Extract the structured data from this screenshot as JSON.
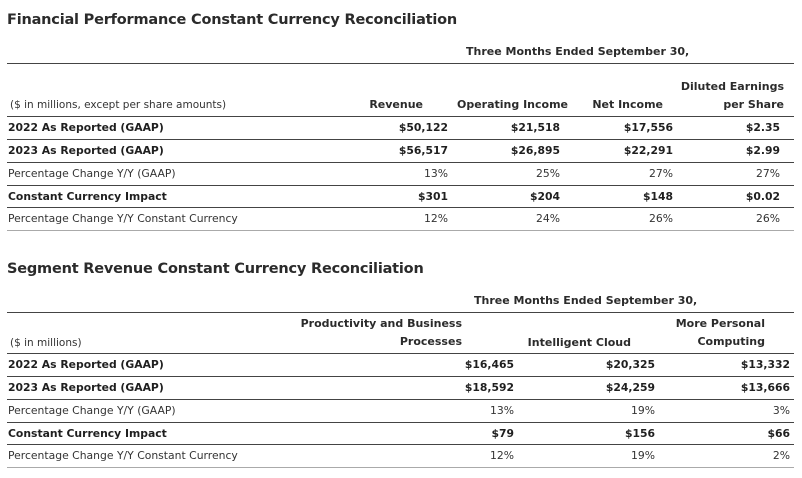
{
  "financial": {
    "title": "Financial Performance Constant Currency Reconciliation",
    "period": "Three Months Ended September 30,",
    "unit_note": "($ in millions, except per share amounts)",
    "headers": {
      "revenue": "Revenue",
      "operating_income": "Operating Income",
      "net_income": "Net Income",
      "eps_line1": "Diluted Earnings",
      "eps_line2": "per Share"
    },
    "rows": [
      {
        "label": "2022 As Reported (GAAP)",
        "revenue": "$50,122",
        "operating_income": "$21,518",
        "net_income": "$17,556",
        "eps": "$2.35"
      },
      {
        "label": "2023 As Reported (GAAP)",
        "revenue": "$56,517",
        "operating_income": "$26,895",
        "net_income": "$22,291",
        "eps": "$2.99"
      },
      {
        "label": "Percentage Change Y/Y (GAAP)",
        "revenue": "13%",
        "operating_income": "25%",
        "net_income": "27%",
        "eps": "27%"
      },
      {
        "label": "Constant Currency Impact",
        "revenue": "$301",
        "operating_income": "$204",
        "net_income": "$148",
        "eps": "$0.02"
      },
      {
        "label": "Percentage Change Y/Y Constant Currency",
        "revenue": "12%",
        "operating_income": "24%",
        "net_income": "26%",
        "eps": "26%"
      }
    ]
  },
  "segment": {
    "title": "Segment Revenue Constant Currency Reconciliation",
    "period": "Three Months Ended September 30,",
    "unit_note": "($ in millions)",
    "headers": {
      "pbp_line1": "Productivity and Business",
      "pbp_line2": "Processes",
      "cloud": "Intelligent Cloud",
      "mpc_line1": "More Personal",
      "mpc_line2": "Computing"
    },
    "rows": [
      {
        "label": "2022 As Reported (GAAP)",
        "pbp": "$16,465",
        "cloud": "$20,325",
        "mpc": "$13,332"
      },
      {
        "label": "2023 As Reported (GAAP)",
        "pbp": "$18,592",
        "cloud": "$24,259",
        "mpc": "$13,666"
      },
      {
        "label": "Percentage Change Y/Y (GAAP)",
        "pbp": "13%",
        "cloud": "19%",
        "mpc": "3%"
      },
      {
        "label": "Constant Currency Impact",
        "pbp": "$79",
        "cloud": "$156",
        "mpc": "$66"
      },
      {
        "label": "Percentage Change Y/Y Constant Currency",
        "pbp": "12%",
        "cloud": "19%",
        "mpc": "2%"
      }
    ]
  }
}
